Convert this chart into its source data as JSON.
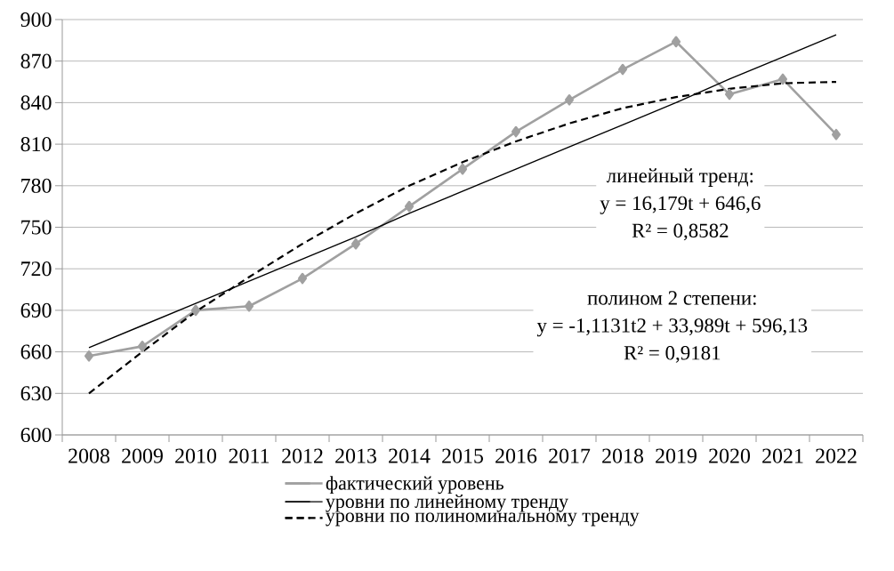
{
  "chart_data": {
    "type": "line",
    "categories": [
      "2008",
      "2009",
      "2010",
      "2011",
      "2012",
      "2013",
      "2014",
      "2015",
      "2016",
      "2017",
      "2018",
      "2019",
      "2020",
      "2021",
      "2022"
    ],
    "series": [
      {
        "name": "фактический уровень",
        "color": "#a0a0a0",
        "marker": "diamond",
        "line_style": "solid",
        "values": [
          657,
          664,
          690,
          693,
          713,
          738,
          765,
          792,
          819,
          842,
          864,
          884,
          846,
          857,
          817
        ]
      },
      {
        "name": "уровни по линейному тренду",
        "color": "#000000",
        "marker": "none",
        "line_style": "solid",
        "values": [
          663,
          679,
          695,
          711,
          727,
          743,
          760,
          776,
          792,
          808,
          824,
          840,
          857,
          873,
          889
        ]
      },
      {
        "name": "уровни по полиноминальному тренду",
        "color": "#000000",
        "marker": "none",
        "line_style": "dashed",
        "values": [
          630,
          660,
          689,
          714,
          738,
          760,
          780,
          797,
          812,
          825,
          836,
          844,
          850,
          854,
          855
        ]
      }
    ],
    "ylim": [
      600,
      900
    ],
    "yticks": [
      600,
      630,
      660,
      690,
      720,
      750,
      780,
      810,
      840,
      870,
      900
    ],
    "grid": "y",
    "legend": "bottom",
    "annotations": [
      "линейный тренд:",
      "y = 16,179t + 646,6",
      "R² = 0,8582",
      "полином 2 степени:",
      "y = -1,1131t2 + 33,989t + 596,13",
      "R² = 0,9181"
    ]
  }
}
